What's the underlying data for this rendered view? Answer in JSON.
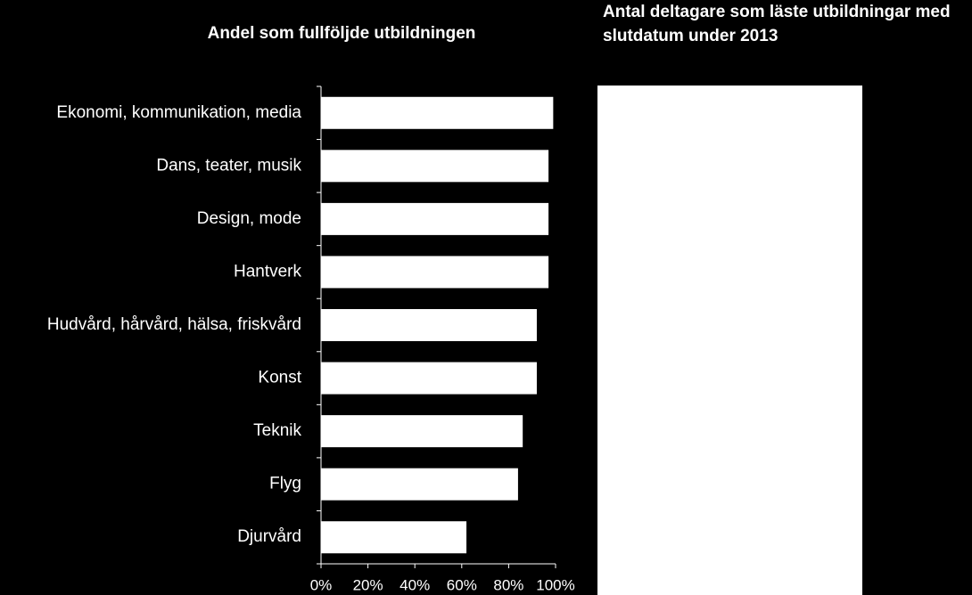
{
  "chart_data": {
    "type": "barh",
    "title": "Andel som fullföljde utbildningen",
    "categories": [
      "Ekonomi, kommunikation, media",
      "Dans, teater, musik",
      "Design, mode",
      "Hantverk",
      "Hudvård, hårvård, hälsa, friskvård",
      "Konst",
      "Teknik",
      "Flyg",
      "Djurvård"
    ],
    "values": [
      99,
      97,
      97,
      97,
      92,
      92,
      86,
      84,
      62
    ],
    "color": "#ffffff",
    "xlim": [
      0,
      100
    ],
    "xticks": [
      {
        "value": 0,
        "label": "0%"
      },
      {
        "value": 20,
        "label": "20%"
      },
      {
        "value": 40,
        "label": "40%"
      },
      {
        "value": 60,
        "label": "60%"
      },
      {
        "value": 80,
        "label": "80%"
      },
      {
        "value": 100,
        "label": "100%"
      }
    ],
    "grid": false
  },
  "side_panel": {
    "title": "Antal deltagare som läste utbildningar med slutdatum under 2013"
  }
}
